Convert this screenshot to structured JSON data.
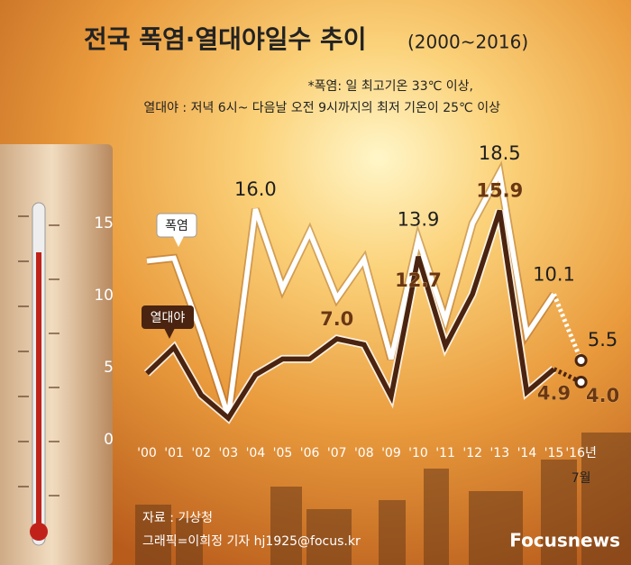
{
  "chart_data": {
    "type": "line",
    "title": "전국 폭염·열대야일수 추이",
    "subtitle": "(2000~2016)",
    "notes": [
      "*폭염: 일 최고기온 33℃ 이상,",
      "열대야 : 저녁 6시~ 다음날 오전 9시까지의 최저 기온이 25℃ 이상"
    ],
    "categories": [
      "'00",
      "'01",
      "'02",
      "'03",
      "'04",
      "'05",
      "'06",
      "'07",
      "'08",
      "'09",
      "'10",
      "'11",
      "'12",
      "'13",
      "'14",
      "'15",
      "'16년"
    ],
    "last_category_note": "7월",
    "series": [
      {
        "name": "폭염",
        "color": "#ffffff",
        "values": [
          12.4,
          12.6,
          7.4,
          1.6,
          16.0,
          10.5,
          14.4,
          9.8,
          12.5,
          5.6,
          13.9,
          8.3,
          15.0,
          18.5,
          7.3,
          10.1,
          5.5
        ],
        "value_labels": [
          null,
          null,
          null,
          null,
          "16.0",
          null,
          null,
          null,
          null,
          null,
          "13.9",
          null,
          null,
          "18.5",
          null,
          "10.1",
          "5.5"
        ]
      },
      {
        "name": "열대야",
        "color": "#4a2410",
        "values": [
          4.6,
          6.4,
          3.1,
          1.5,
          4.5,
          5.6,
          5.6,
          7.0,
          6.6,
          3.0,
          12.7,
          6.5,
          10.1,
          15.9,
          3.3,
          4.9,
          4.0
        ],
        "value_labels": [
          null,
          null,
          null,
          null,
          null,
          null,
          null,
          "7.0",
          null,
          null,
          "12.7",
          null,
          null,
          "15.9",
          null,
          "4.9",
          "4.0"
        ]
      }
    ],
    "dashed_last_segment": true,
    "ylim": [
      0,
      20
    ],
    "yticks": [
      0,
      5,
      10,
      15
    ],
    "source": "자료 : 기상청",
    "credit": "그래픽=이희정 기자 hj1925@focus.kr",
    "logo": "Focusnews"
  }
}
